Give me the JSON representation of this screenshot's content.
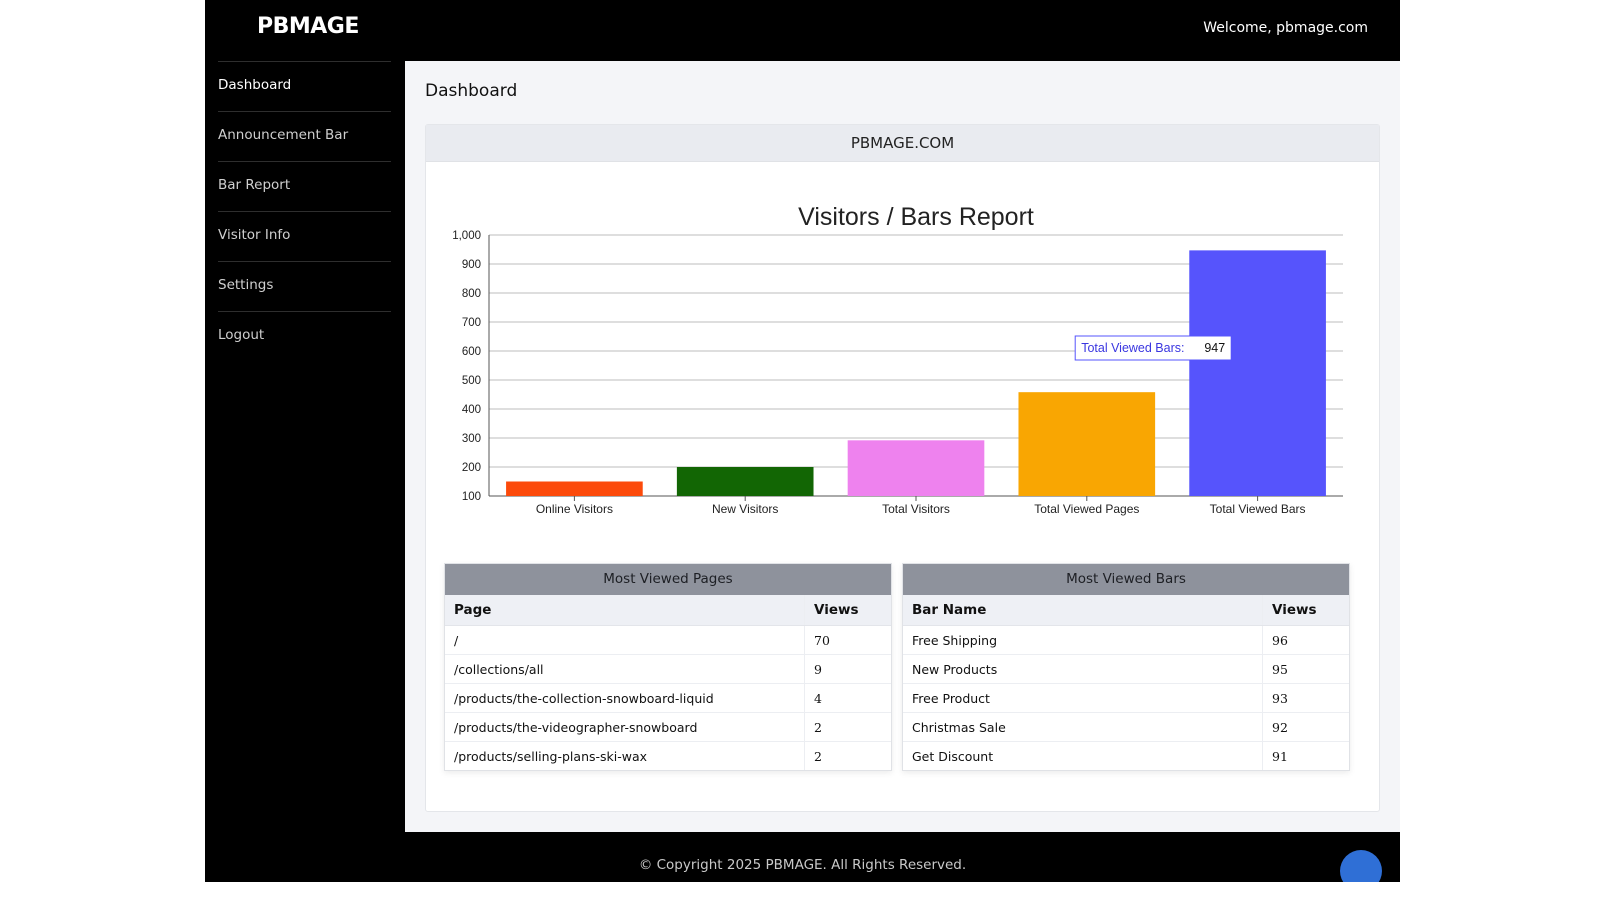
{
  "header": {
    "logo": "PBMAGE",
    "welcome": "Welcome, pbmage.com"
  },
  "sidebar": {
    "items": [
      {
        "label": "Dashboard",
        "active": true
      },
      {
        "label": "Announcement Bar",
        "active": false
      },
      {
        "label": "Bar Report",
        "active": false
      },
      {
        "label": "Visitor Info",
        "active": false
      },
      {
        "label": "Settings",
        "active": false
      },
      {
        "label": "Logout",
        "active": false
      }
    ]
  },
  "main": {
    "page_title": "Dashboard",
    "card_title": "PBMAGE.COM"
  },
  "chart_data": {
    "type": "bar",
    "title": "Visitors / Bars Report",
    "xlabel": "",
    "ylabel": "",
    "ylim": [
      100,
      1000
    ],
    "yticks": [
      "100",
      "200",
      "300",
      "400",
      "500",
      "600",
      "700",
      "800",
      "900",
      "1,000"
    ],
    "grid": true,
    "categories": [
      "Online Visitors",
      "New Visitors",
      "Total Visitors",
      "Total Viewed Pages",
      "Total Viewed Bars"
    ],
    "values": [
      150,
      200,
      292,
      458,
      947
    ],
    "colors": [
      "#fc4a0b",
      "#126604",
      "#ee82ee",
      "#f9a602",
      "#5654fc"
    ],
    "tooltip": {
      "label": "Total Viewed Bars:",
      "value": "947",
      "category_index": 4
    }
  },
  "tables": {
    "pages": {
      "title": "Most Viewed Pages",
      "columns": [
        "Page",
        "Views"
      ],
      "rows": [
        [
          "/",
          "70"
        ],
        [
          "/collections/all",
          "9"
        ],
        [
          "/products/the-collection-snowboard-liquid",
          "4"
        ],
        [
          "/products/the-videographer-snowboard",
          "2"
        ],
        [
          "/products/selling-plans-ski-wax",
          "2"
        ]
      ]
    },
    "bars": {
      "title": "Most Viewed Bars",
      "columns": [
        "Bar Name",
        "Views"
      ],
      "rows": [
        [
          "Free Shipping",
          "96"
        ],
        [
          "New Products",
          "95"
        ],
        [
          "Free Product",
          "93"
        ],
        [
          "Christmas Sale",
          "92"
        ],
        [
          "Get Discount",
          "91"
        ]
      ]
    }
  },
  "footer": {
    "copyright": "© Copyright 2025 PBMAGE. All Rights Reserved."
  }
}
